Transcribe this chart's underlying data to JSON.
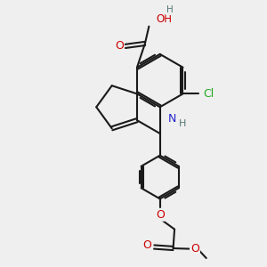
{
  "bg_color": "#efefef",
  "bond_color": "#1a1a1a",
  "bond_width": 1.5,
  "dbo": 0.07,
  "atom_colors": {
    "O": "#cc0000",
    "N": "#2222cc",
    "Cl": "#22aa22",
    "H": "#557777"
  },
  "font_size": 8.5
}
